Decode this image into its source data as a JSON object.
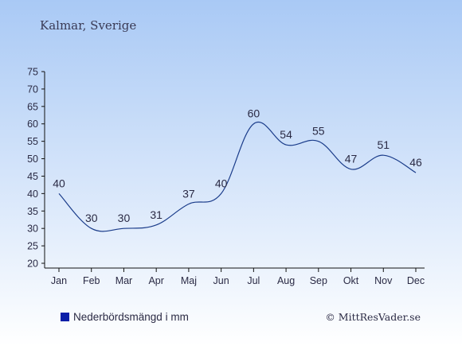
{
  "header": {
    "location": "Kalmar, Sverige"
  },
  "legend": {
    "label": "Nederbördsmängd i mm"
  },
  "copyright": "© MittResVader.se",
  "colors": {
    "background_top": "#a9c9f5",
    "background_bottom": "#ffffff",
    "line": "#1a3c8a",
    "legend_marker": "#0a1ea8",
    "text": "#2a2a44"
  },
  "chart_data": {
    "type": "line",
    "categories": [
      "Jan",
      "Feb",
      "Mar",
      "Apr",
      "Maj",
      "Jun",
      "Jul",
      "Aug",
      "Sep",
      "Okt",
      "Nov",
      "Dec"
    ],
    "series": [
      {
        "name": "Nederbördsmängd i mm",
        "values": [
          40,
          30,
          30,
          31,
          37,
          40,
          60,
          54,
          55,
          47,
          51,
          46
        ]
      }
    ],
    "ylim": [
      20,
      75
    ],
    "yticks": [
      20,
      25,
      30,
      35,
      40,
      45,
      50,
      55,
      60,
      65,
      70,
      75
    ],
    "grid": false,
    "legend_position": "bottom-left"
  }
}
